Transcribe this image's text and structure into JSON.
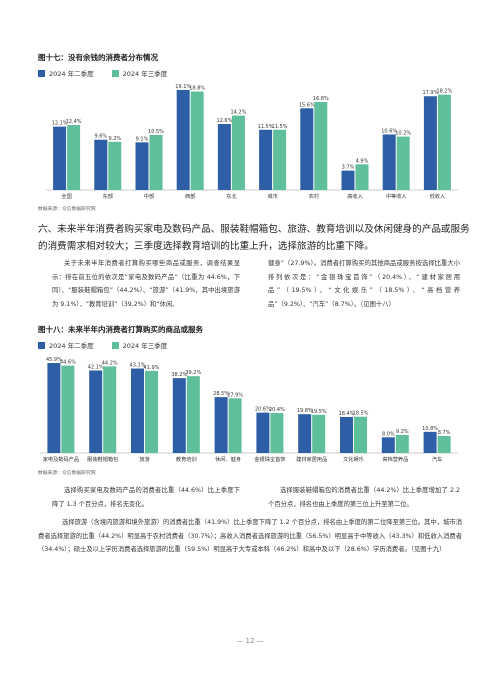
{
  "legend": {
    "q2": "2024 年二季度",
    "q3": "2024 年三季度"
  },
  "colors": {
    "q2": "#2e5fa6",
    "q3": "#5fbf9a"
  },
  "chart_data": [
    {
      "type": "bar",
      "title": "图十七：没有余钱的消费者分布情况",
      "categories": [
        "全国",
        "东部",
        "中部",
        "西部",
        "东北",
        "城市",
        "农村",
        "高收入",
        "中等收入",
        "低收入"
      ],
      "series": [
        {
          "name": "2024 年二季度",
          "values": [
            12.1,
            9.6,
            9.1,
            19.1,
            12.6,
            11.5,
            15.6,
            3.7,
            10.6,
            17.9
          ]
        },
        {
          "name": "2024 年三季度",
          "values": [
            12.4,
            9.2,
            10.5,
            18.8,
            14.2,
            11.5,
            16.8,
            4.9,
            10.2,
            18.2
          ]
        }
      ],
      "ylim": [
        0,
        21
      ],
      "source": "数据来源：众信数据研究院"
    },
    {
      "type": "bar",
      "title": "图十八：未来半年内消费者打算购买的商品或服务",
      "categories": [
        "家电及数码产品",
        "服装鞋帽箱包",
        "旅游",
        "教育培训",
        "休闲、健身",
        "金银珠宝首饰",
        "建材家居用品",
        "文化娱乐",
        "高档营养品",
        "汽车"
      ],
      "series": [
        {
          "name": "2024 年二季度",
          "values": [
            45.9,
            42.1,
            43.1,
            38.2,
            28.5,
            20.6,
            19.8,
            18.4,
            8.0,
            10.8
          ]
        },
        {
          "name": "2024 年三季度",
          "values": [
            44.6,
            44.2,
            41.9,
            39.2,
            27.9,
            20.4,
            19.5,
            18.5,
            9.2,
            8.7
          ]
        }
      ],
      "ylim": [
        0,
        50
      ],
      "source": "数据来源：众信数据研究院"
    }
  ],
  "heading": "六、未来半年消费者购买家电及数码产品、服装鞋帽箱包、旅游、教育培训以及休闲健身的产品或服务的消费需求相对较大；三季度选择教育培训的比重上升，选择旅游的比重下降。",
  "para_left": "关于未来半年消费者打算购买哪些商品或服务，调查结果显示：排在前五位的依次是“家电及数码产品”（比重为 44.6%，下同）、“服装鞋帽箱包”（44.2%）、“旅游”（41.9%，其中出境旅游为 9.1%）、“教育培训”（39.2%）和“休闲、",
  "para_right": "健身”（27.9%）。消费者打算购买的其他商品或服务按选择比重大小排列依次是：“金银珠宝首饰”（20.4%）、“建材家居用品”（19.5%）、“文化娱乐”（18.5%）、“高档营养品”（9.2%）、“汽车”（8.7%）。（见图十八）",
  "para2_left": "选择购买家电及数码产品的消费者比重（44.6%）比上季度下降了 1.3 个百分点，排名无变化。",
  "para2_right": "选择服装鞋帽箱包的消费者比重（44.2%）比上季度增加了 2.2 个百分点，排名也由上季度的第三位上升至第二位。",
  "para3": "选择旅游（含境内旅游和境外旅游）的消费者比重（41.9%）比上季度下降了 1.2 个百分点，排名由上季度的第二位降至第三位。其中，城市消费者选择旅游的比重（44.2%）明显高于农村消费者（30.7%）；高收入消费者选择旅游的比重（56.5%）明显高于中等收入（43.3%）和低收入消费者（34.4%）；硕士及以上学历消费者选择旅游的比重（59.5%）明显高于大专或本科（46.2%）和高中及以下（28.6%）学历消费者。（见图十九）",
  "footer": "— 12 —"
}
